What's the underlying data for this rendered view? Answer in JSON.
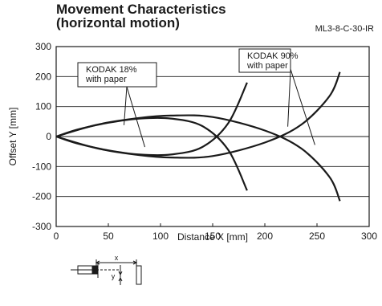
{
  "chart_data": {
    "type": "line",
    "title": "Movement Characteristics",
    "subtitle": "(horizontal motion)",
    "model": "ML3-8-C-30-IR",
    "xlabel": "Distance X [mm]",
    "ylabel": "Offset Y [mm]",
    "xlim": [
      0,
      300
    ],
    "ylim": [
      -300,
      300
    ],
    "xticks": [
      0,
      50,
      100,
      150,
      200,
      250,
      300
    ],
    "yticks": [
      300,
      200,
      100,
      0,
      -100,
      -200,
      -300
    ],
    "grid": true,
    "series": [
      {
        "name": "KODAK 18% with paper",
        "branches": [
          {
            "x": [
              0,
              20,
              50,
              80,
              110,
              140,
              165,
              183
            ],
            "y": [
              0,
              -23,
              -46,
              -60,
              -60,
              -35,
              45,
              180
            ]
          },
          {
            "x": [
              0,
              20,
              50,
              80,
              110,
              140,
              165,
              183
            ],
            "y": [
              0,
              23,
              46,
              60,
              60,
              35,
              -45,
              -180
            ]
          }
        ]
      },
      {
        "name": "KODAK 90% with paper",
        "branches": [
          {
            "x": [
              0,
              40,
              80,
              110,
              150,
              200,
              235,
              262,
              272
            ],
            "y": [
              0,
              -40,
              -62,
              -70,
              -65,
              -20,
              40,
              135,
              215
            ]
          },
          {
            "x": [
              0,
              40,
              80,
              110,
              150,
              200,
              235,
              262,
              272
            ],
            "y": [
              0,
              40,
              62,
              70,
              65,
              20,
              -40,
              -135,
              -215
            ]
          }
        ]
      }
    ],
    "annotations": [
      {
        "lines": [
          "KODAK 18%",
          "with paper"
        ]
      },
      {
        "lines": [
          "KODAK 90%",
          "with paper"
        ]
      }
    ],
    "inset_labels": {
      "x": "x",
      "y": "y"
    }
  }
}
